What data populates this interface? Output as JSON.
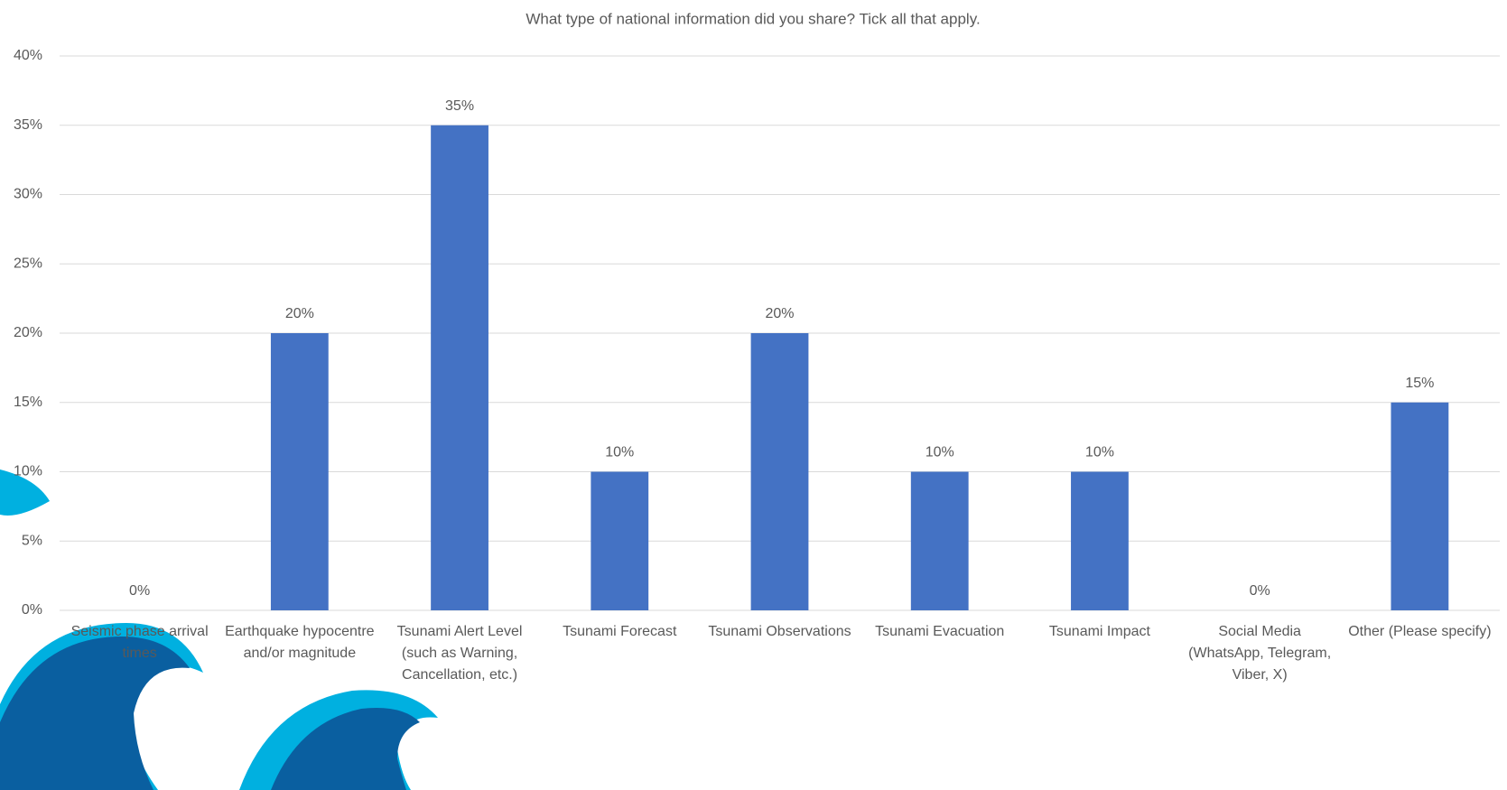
{
  "chart_data": {
    "type": "bar",
    "title": "What type of national information did you share? Tick all that apply.",
    "categories": [
      "Seismic phase arrival times",
      "Earthquake hypocentre and/or magnitude",
      "Tsunami Alert Level (such as Warning, Cancellation, etc.)",
      "Tsunami Forecast",
      "Tsunami Observations",
      "Tsunami Evacuation",
      "Tsunami Impact",
      "Social Media (WhatsApp, Telegram, Viber, X)",
      "Other (Please specify)"
    ],
    "values": [
      0,
      20,
      35,
      10,
      20,
      10,
      10,
      0,
      15
    ],
    "value_labels": [
      "0%",
      "20%",
      "35%",
      "10%",
      "20%",
      "10%",
      "10%",
      "0%",
      "15%"
    ],
    "color": "#4472c4",
    "ylim": [
      0,
      40
    ],
    "yticks": [
      {
        "value": 0,
        "label": "0%"
      },
      {
        "value": 5,
        "label": "5%"
      },
      {
        "value": 10,
        "label": "10%"
      },
      {
        "value": 15,
        "label": "15%"
      },
      {
        "value": 20,
        "label": "20%"
      },
      {
        "value": 25,
        "label": "25%"
      },
      {
        "value": 30,
        "label": "30%"
      },
      {
        "value": 35,
        "label": "35%"
      },
      {
        "value": 40,
        "label": "40%"
      }
    ],
    "grid": true
  }
}
